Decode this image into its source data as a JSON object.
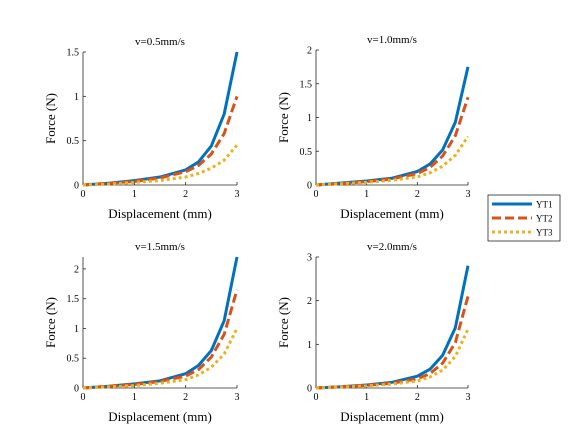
{
  "legend": {
    "placement": "right-middle",
    "entries": [
      {
        "name": "YT1",
        "color": "#0072BD",
        "style": "solid"
      },
      {
        "name": "YT2",
        "color": "#D95319",
        "style": "dashed"
      },
      {
        "name": "YT3",
        "color": "#EDB120",
        "style": "dotted"
      }
    ]
  },
  "chart_data": [
    {
      "type": "line",
      "title": "v=0.5mm/s",
      "xlabel": "Displacement (mm)",
      "ylabel": "Force (N)",
      "xlim": [
        0,
        3
      ],
      "ylim": [
        0,
        1.5
      ],
      "xticks": [
        "0",
        "1",
        "2",
        "3"
      ],
      "yticks": [
        "0",
        "0.5",
        "1",
        "1.5"
      ],
      "grid": false,
      "x": [
        0,
        0.5,
        1,
        1.5,
        2,
        2.25,
        2.5,
        2.75,
        3
      ],
      "series": [
        {
          "name": "YT1",
          "values": [
            0,
            0.02,
            0.05,
            0.09,
            0.17,
            0.26,
            0.44,
            0.8,
            1.5
          ]
        },
        {
          "name": "YT2",
          "values": [
            0,
            0.02,
            0.04,
            0.08,
            0.15,
            0.22,
            0.35,
            0.58,
            1.0
          ]
        },
        {
          "name": "YT3",
          "values": [
            0,
            0.01,
            0.03,
            0.05,
            0.09,
            0.13,
            0.19,
            0.28,
            0.45
          ]
        }
      ]
    },
    {
      "type": "line",
      "title": "v=1.0mm/s",
      "xlabel": "Displacement (mm)",
      "ylabel": "Force (N)",
      "xlim": [
        0,
        3
      ],
      "ylim": [
        0,
        2
      ],
      "xticks": [
        "0",
        "1",
        "2",
        "3"
      ],
      "yticks": [
        "0",
        "0.5",
        "1",
        "1.5",
        "2"
      ],
      "grid": false,
      "x": [
        0,
        0.5,
        1,
        1.5,
        2,
        2.25,
        2.5,
        2.75,
        3
      ],
      "series": [
        {
          "name": "YT1",
          "values": [
            0,
            0.03,
            0.06,
            0.1,
            0.2,
            0.31,
            0.52,
            0.93,
            1.75
          ]
        },
        {
          "name": "YT2",
          "values": [
            0,
            0.02,
            0.05,
            0.09,
            0.17,
            0.26,
            0.43,
            0.73,
            1.3
          ]
        },
        {
          "name": "YT3",
          "values": [
            0,
            0.02,
            0.04,
            0.07,
            0.12,
            0.18,
            0.28,
            0.44,
            0.72
          ]
        }
      ]
    },
    {
      "type": "line",
      "title": "v=1.5mm/s",
      "xlabel": "Displacement (mm)",
      "ylabel": "Force (N)",
      "xlim": [
        0,
        3
      ],
      "ylim": [
        0,
        2.2
      ],
      "xticks": [
        "0",
        "1",
        "2",
        "3"
      ],
      "yticks": [
        "0",
        "0.5",
        "1",
        "1.5",
        "2"
      ],
      "grid": false,
      "x": [
        0,
        0.5,
        1,
        1.5,
        2,
        2.25,
        2.5,
        2.75,
        3
      ],
      "series": [
        {
          "name": "YT1",
          "values": [
            0,
            0.03,
            0.07,
            0.12,
            0.24,
            0.38,
            0.63,
            1.13,
            2.2
          ]
        },
        {
          "name": "YT2",
          "values": [
            0,
            0.03,
            0.06,
            0.11,
            0.2,
            0.31,
            0.52,
            0.9,
            1.65
          ]
        },
        {
          "name": "YT3",
          "values": [
            0,
            0.02,
            0.04,
            0.08,
            0.14,
            0.22,
            0.35,
            0.57,
            1.0
          ]
        }
      ]
    },
    {
      "type": "line",
      "title": "v=2.0mm/s",
      "xlabel": "Displacement (mm)",
      "ylabel": "Force (N)",
      "xlim": [
        0,
        3
      ],
      "ylim": [
        0,
        3
      ],
      "xticks": [
        "0",
        "1",
        "2",
        "3"
      ],
      "yticks": [
        "0",
        "1",
        "2",
        "3"
      ],
      "grid": false,
      "x": [
        0,
        0.5,
        1,
        1.5,
        2,
        2.25,
        2.5,
        2.75,
        3
      ],
      "series": [
        {
          "name": "YT1",
          "values": [
            0,
            0.03,
            0.07,
            0.13,
            0.27,
            0.43,
            0.75,
            1.38,
            2.8
          ]
        },
        {
          "name": "YT2",
          "values": [
            0,
            0.03,
            0.06,
            0.11,
            0.21,
            0.33,
            0.57,
            1.04,
            2.1
          ]
        },
        {
          "name": "YT3",
          "values": [
            0,
            0.02,
            0.05,
            0.09,
            0.16,
            0.25,
            0.41,
            0.72,
            1.35
          ]
        }
      ]
    }
  ]
}
